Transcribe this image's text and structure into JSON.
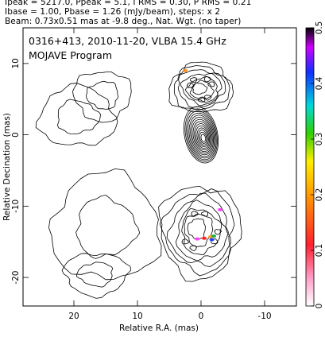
{
  "header": {
    "line1": "Ipeak = 5217.0, Ppeak = 5.1, I RMS = 0.30, P RMS = 0.21",
    "line2": "Ibase = 1.00, Pbase = 1.26 (mJy/beam), steps: x 2",
    "line3": "Beam: 0.73x0.51 mas at -9.8 deg., Nat. Wgt. (no taper)"
  },
  "chart_data": {
    "type": "contour",
    "title": "0316+413, 2010-11-20, VLBA 15.4 GHz",
    "subtitle": "MOJAVE Program",
    "xlabel": "Relative R.A. (mas)",
    "ylabel": "Relative Decination (mas)",
    "xlim": [
      28,
      -15
    ],
    "ylim": [
      -24,
      15
    ],
    "xticks": [
      20,
      10,
      0,
      -10
    ],
    "yticks": [
      10,
      0,
      -10,
      -20
    ],
    "colorbar": {
      "range": [
        0,
        0.5
      ],
      "ticks": [
        "0",
        "0.1",
        "0.2",
        "0.3",
        "0.4",
        "0.5"
      ]
    },
    "core": {
      "x": 0,
      "y": 0,
      "rings": 14,
      "rx0": 2.6,
      "ry0": 4.0
    },
    "blobs": [
      {
        "x": 19.5,
        "y": 2.5,
        "rx": 6.0,
        "ry": 4.2
      },
      {
        "x": 15.5,
        "y": 5.5,
        "rx": 4.5,
        "ry": 3.5
      },
      {
        "x": 15.0,
        "y": -13.0,
        "rx": 8.5,
        "ry": 7.5
      },
      {
        "x": 16.5,
        "y": -19.5,
        "rx": 5.0,
        "ry": 3.0
      },
      {
        "x": 0.0,
        "y": 6.5,
        "rx": 5.0,
        "ry": 3.5
      },
      {
        "x": 0.2,
        "y": -13.5,
        "rx": 6.3,
        "ry": 6.5
      }
    ],
    "hotspots": [
      {
        "x": -0.5,
        "y": -14.5,
        "color": "#ff2020"
      },
      {
        "x": -1.5,
        "y": -14.3,
        "color": "#ffa020"
      },
      {
        "x": -2.0,
        "y": -14.2,
        "color": "#20b040"
      },
      {
        "x": -1.7,
        "y": -14.7,
        "color": "#2040ff"
      },
      {
        "x": 0.6,
        "y": -14.6,
        "color": "#ff40ff"
      },
      {
        "x": -3.0,
        "y": -10.5,
        "color": "#ff40ff"
      },
      {
        "x": 2.5,
        "y": 9.0,
        "color": "#ff9020"
      }
    ]
  }
}
